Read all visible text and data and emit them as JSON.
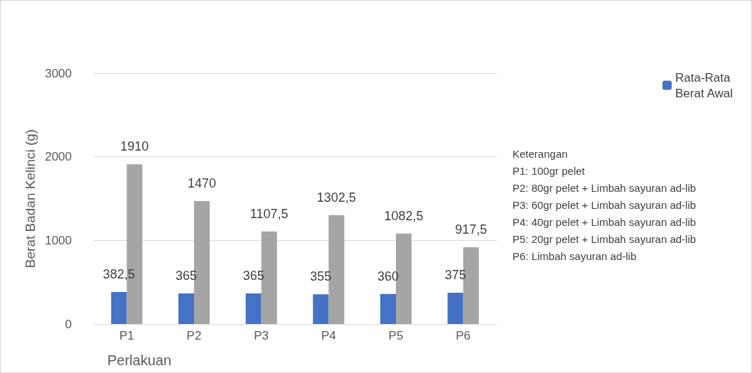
{
  "chart_data": {
    "type": "bar",
    "xlabel": "Perlakuan",
    "ylabel": "Berat Badan Kelinci (g)",
    "categories": [
      "P1",
      "P2",
      "P3",
      "P4",
      "P5",
      "P6"
    ],
    "series": [
      {
        "name": "Rata-Rata Berat Awal",
        "color": "#4472c4",
        "values": [
          382.5,
          365,
          365,
          355,
          360,
          375
        ],
        "value_labels": [
          "382,5",
          "365",
          "365",
          "355",
          "360",
          "375"
        ]
      },
      {
        "color": "#a5a5a5",
        "values": [
          1910,
          1470,
          1107.5,
          1302.5,
          1082.5,
          917.5
        ],
        "value_labels": [
          "1910",
          "1470",
          "1107,5",
          "1302,5",
          "1082,5",
          "917,5"
        ]
      }
    ],
    "ylim": [
      0,
      3000
    ],
    "yticks": [
      0,
      1000,
      2000,
      3000
    ],
    "grid": "y",
    "legend": "top right",
    "annotations": [
      "Keterangan",
      "P1: 100gr pelet",
      "P2: 80gr pelet + Limbah sayuran ad-lib",
      "P3: 60gr pelet + Limbah sayuran ad-lib",
      "P4: 40gr pelet + Limbah sayuran ad-lib",
      "P5: 20gr pelet + Limbah sayuran ad-lib",
      "P6: Limbah sayuran ad-lib"
    ]
  }
}
